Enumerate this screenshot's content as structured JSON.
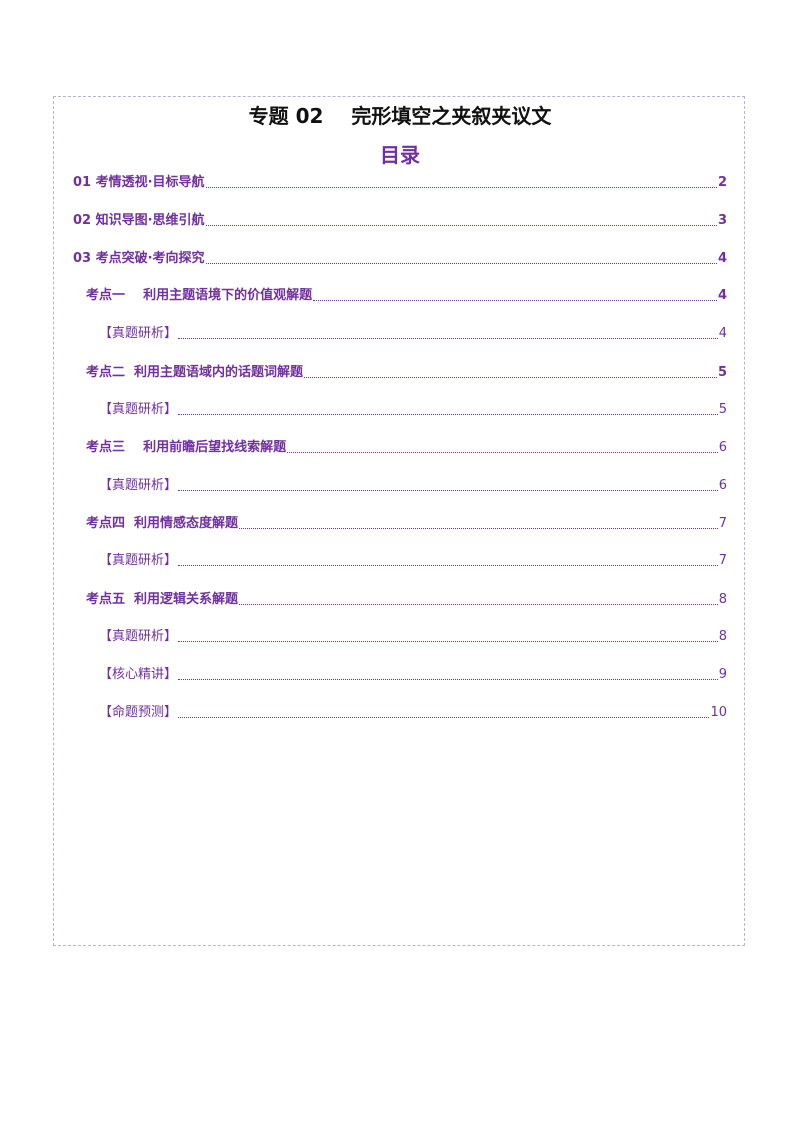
{
  "document": {
    "title": "专题 02    完形填空之夹叙夹议文",
    "toc_heading": "目录"
  },
  "toc": [
    {
      "label": "01 考情透视·目标导航",
      "page": "2",
      "level": "lvl1"
    },
    {
      "label": "02 知识导图·思维引航",
      "page": "3",
      "level": "lvl1"
    },
    {
      "label": "03 考点突破·考向探究",
      "page": "4",
      "level": "lvl1"
    },
    {
      "label": "考点一    利用主题语境下的价值观解题",
      "page": "4",
      "level": "lvl2"
    },
    {
      "label": "【真题研析】",
      "page": "4",
      "level": "lvl3"
    },
    {
      "label": "考点二  利用主题语域内的话题词解题",
      "page": "5",
      "level": "lvl2"
    },
    {
      "label": "【真题研析】",
      "page": "5",
      "level": "lvl3"
    },
    {
      "label": "考点三    利用前瞻后望找线索解题",
      "page": "6",
      "level": "lvl2n"
    },
    {
      "label": "【真题研析】",
      "page": "6",
      "level": "lvl3"
    },
    {
      "label": "考点四  利用情感态度解题",
      "page": "7",
      "level": "lvl2n"
    },
    {
      "label": "【真题研析】",
      "page": "7",
      "level": "lvl3"
    },
    {
      "label": "考点五  利用逻辑关系解题",
      "page": "8",
      "level": "lvl2n"
    },
    {
      "label": "【真题研析】",
      "page": "8",
      "level": "lvl3"
    },
    {
      "label": "【核心精讲】",
      "page": "9",
      "level": "lvl3"
    },
    {
      "label": "【命题预测】",
      "page": "10",
      "level": "lvl3"
    }
  ]
}
